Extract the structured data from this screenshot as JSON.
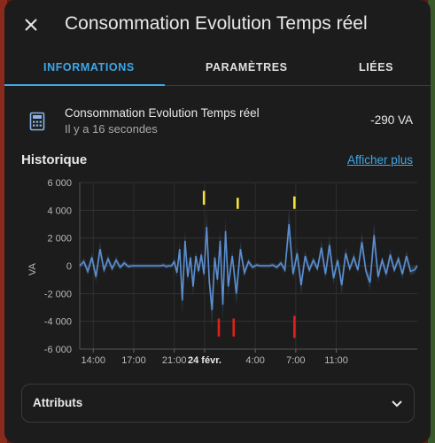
{
  "dialog": {
    "title": "Consommation Evolution Temps réel",
    "close_icon": "close-icon"
  },
  "tabs": [
    {
      "label": "INFORMATIONS",
      "active": true
    },
    {
      "label": "PARAMÈTRES",
      "active": false
    },
    {
      "label": "LIÉES",
      "active": false
    }
  ],
  "entity": {
    "icon": "calculator-icon",
    "name": "Consommation Evolution Temps réel",
    "last_changed": "Il y a 16 secondes",
    "value": "-290 VA"
  },
  "history": {
    "title": "Historique",
    "show_more": "Afficher plus"
  },
  "chart_data": {
    "type": "line",
    "ylabel": "VA",
    "ylim": [
      -6000,
      6000
    ],
    "yticks": [
      6000,
      4000,
      2000,
      0,
      -2000,
      -4000,
      -6000
    ],
    "ytick_labels": [
      "6 000",
      "4 000",
      "2 000",
      "0",
      "-2 000",
      "-4 000",
      "-6 000"
    ],
    "xlim": [
      0,
      25
    ],
    "xticks": [
      1,
      4,
      7,
      9.25,
      13,
      16,
      19
    ],
    "xtick_labels": [
      "14:00",
      "17:00",
      "21:00",
      "24 févr.",
      "4:00",
      "7:00",
      "11:00"
    ],
    "xtick_bold": [
      false,
      false,
      false,
      true,
      false,
      false,
      false
    ],
    "grid": true,
    "series": [
      {
        "color": "#5b8fd0",
        "x": [
          0,
          0.3,
          0.6,
          0.9,
          1.2,
          1.5,
          1.8,
          2.1,
          2.4,
          2.7,
          3,
          3.3,
          3.6,
          3.9,
          4.2,
          4.5,
          4.8,
          5.1,
          5.4,
          5.7,
          6,
          6.2,
          6.4,
          6.6,
          6.8,
          7,
          7.2,
          7.4,
          7.6,
          7.8,
          8,
          8.2,
          8.4,
          8.6,
          8.8,
          9,
          9.2,
          9.4,
          9.6,
          9.8,
          10,
          10.2,
          10.4,
          10.6,
          10.8,
          11,
          11.3,
          11.6,
          11.9,
          12.2,
          12.5,
          12.8,
          13.1,
          13.4,
          13.7,
          14,
          14.3,
          14.6,
          14.9,
          15.2,
          15.5,
          15.8,
          16.1,
          16.4,
          16.7,
          17,
          17.3,
          17.6,
          17.9,
          18.2,
          18.5,
          18.8,
          19.1,
          19.4,
          19.7,
          20,
          20.3,
          20.6,
          20.9,
          21.2,
          21.5,
          21.8,
          22.1,
          22.4,
          22.7,
          23,
          23.3,
          23.6,
          23.9,
          24.2,
          24.5,
          24.8,
          25
        ],
        "y": [
          0,
          300,
          -400,
          600,
          -800,
          1200,
          -300,
          500,
          -200,
          400,
          -100,
          200,
          -50,
          0,
          0,
          0,
          0,
          0,
          0,
          0,
          0,
          50,
          -50,
          0,
          0,
          300,
          -500,
          1200,
          -2500,
          1800,
          -800,
          600,
          -1500,
          700,
          -400,
          800,
          -600,
          2800,
          -1200,
          -3200,
          600,
          -1000,
          1800,
          -2800,
          2500,
          -1500,
          700,
          -2000,
          1200,
          -500,
          300,
          -100,
          50,
          0,
          0,
          0,
          50,
          -100,
          200,
          -300,
          3000,
          -600,
          900,
          -1400,
          700,
          -300,
          400,
          -200,
          1300,
          -600,
          1500,
          -900,
          400,
          -1400,
          900,
          -200,
          600,
          -300,
          1700,
          -400,
          -1200,
          2200,
          -800,
          400,
          -600,
          800,
          -300,
          500,
          -600,
          700,
          -400,
          -290,
          0
        ]
      }
    ],
    "annotations": [
      {
        "x": 9.2,
        "y_from": 4400,
        "y_to": 5400,
        "color": "#f5e13a"
      },
      {
        "x": 11.7,
        "y_from": 4100,
        "y_to": 4900,
        "color": "#f5e13a"
      },
      {
        "x": 15.9,
        "y_from": 4100,
        "y_to": 5000,
        "color": "#f5e13a"
      },
      {
        "x": 10.3,
        "y_from": -3800,
        "y_to": -5100,
        "color": "#e0201a"
      },
      {
        "x": 11.4,
        "y_from": -3800,
        "y_to": -5100,
        "color": "#e0201a"
      },
      {
        "x": 15.9,
        "y_from": -3600,
        "y_to": -5200,
        "color": "#e0201a"
      }
    ]
  },
  "attributes": {
    "label": "Attributs",
    "chevron_icon": "chevron-down-icon"
  }
}
